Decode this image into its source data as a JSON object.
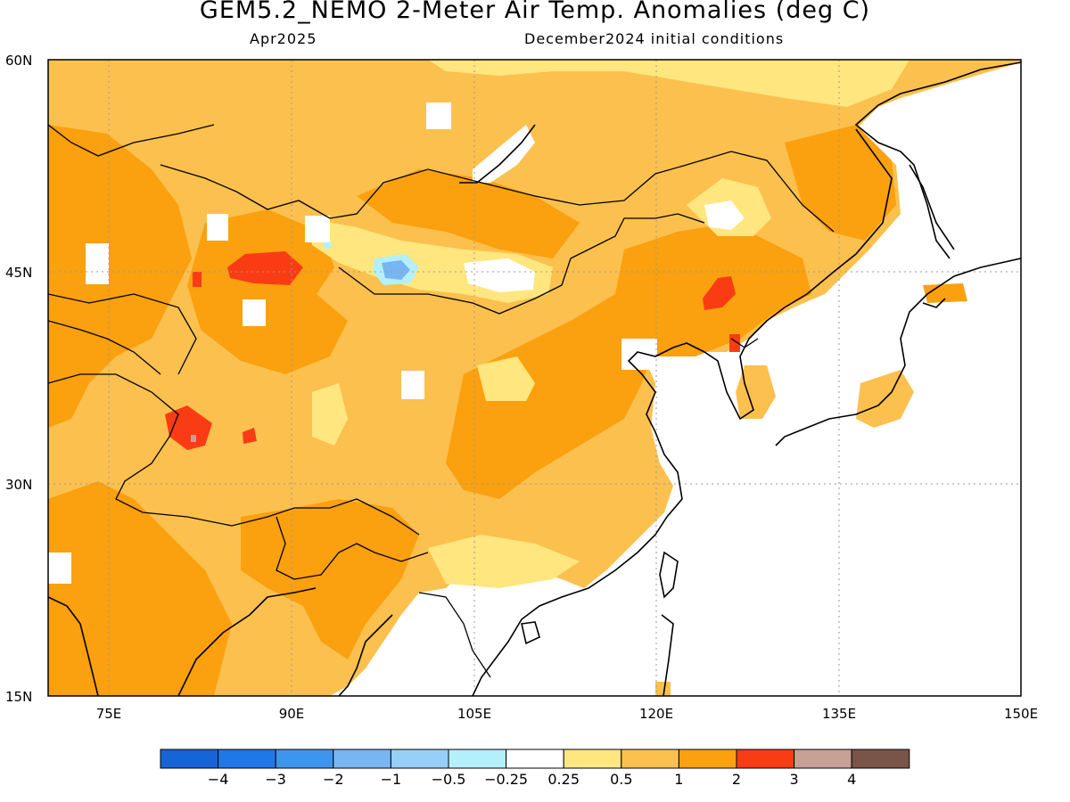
{
  "header": {
    "title": "GEM5.2_NEMO 2-Meter Air Temp. Anomalies (deg C)",
    "month": "Apr2025",
    "initial_conditions": "December2024 initial conditions"
  },
  "map": {
    "lon_range": [
      70,
      150
    ],
    "lat_range": [
      15,
      60
    ],
    "lon_ticks": [
      "75E",
      "90E",
      "105E",
      "120E",
      "135E",
      "150E"
    ],
    "lat_ticks": [
      "15N",
      "30N",
      "45N",
      "60N"
    ],
    "land_base_color": "#fcc04e"
  },
  "colorbar": {
    "labels": [
      "-4",
      "-3",
      "-2",
      "-1",
      "-0.5",
      "-0.25",
      "0.25",
      "0.5",
      "1",
      "2",
      "3",
      "4"
    ],
    "colors": [
      "#1664d6",
      "#1f78e6",
      "#3c96f0",
      "#78b6f2",
      "#96d0f8",
      "#b4f0fc",
      "#ffffff",
      "#ffe67f",
      "#fcc04e",
      "#fba00e",
      "#fa3c14",
      "#c8a096",
      "#7a5447"
    ]
  }
}
